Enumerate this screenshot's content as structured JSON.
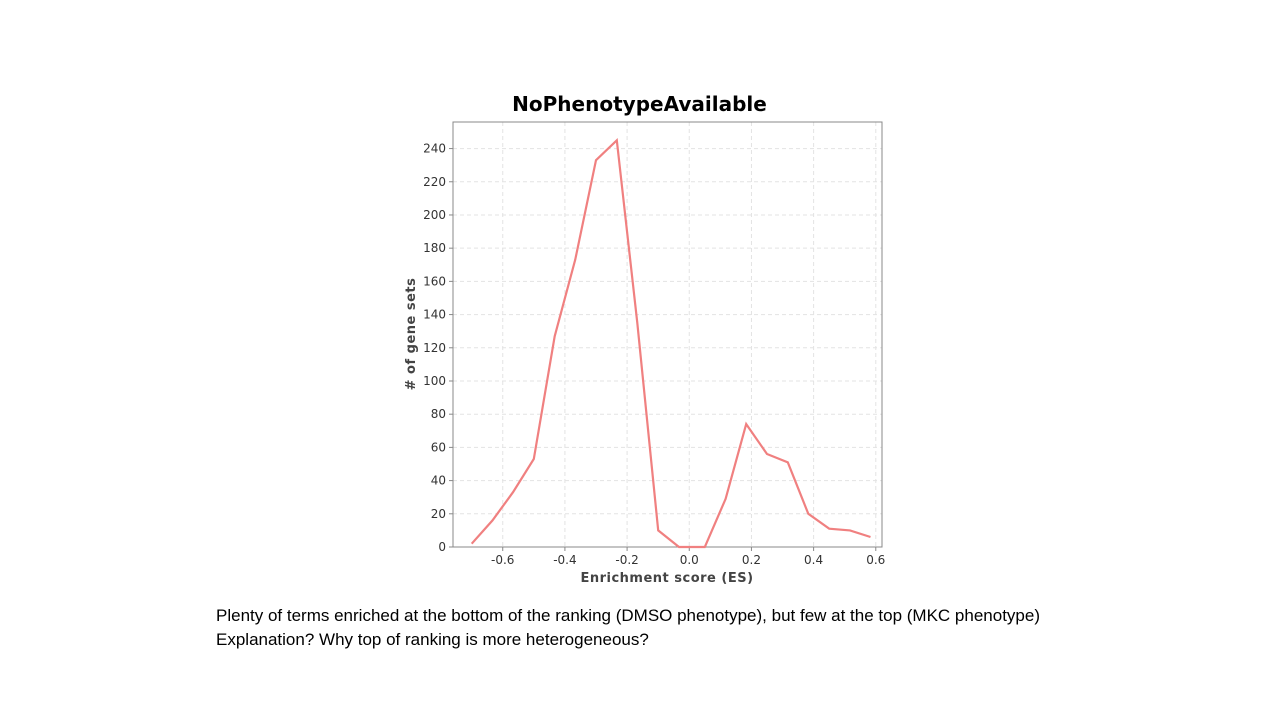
{
  "chart_data": {
    "type": "line",
    "title": "NoPhenotypeAvailable",
    "xlabel": "Enrichment score (ES)",
    "ylabel": "# of gene sets",
    "xlim": [
      -0.76,
      0.62
    ],
    "ylim": [
      0,
      256
    ],
    "x_ticks": [
      -0.6,
      -0.4,
      -0.2,
      0.0,
      0.2,
      0.4,
      0.6
    ],
    "x_tick_labels": [
      "-0.6",
      "-0.4",
      "-0.2",
      "0.0",
      "0.2",
      "0.4",
      "0.6"
    ],
    "y_ticks": [
      0,
      20,
      40,
      60,
      80,
      100,
      120,
      140,
      160,
      180,
      200,
      220,
      240
    ],
    "y_tick_labels": [
      "0",
      "20",
      "40",
      "60",
      "80",
      "100",
      "120",
      "140",
      "160",
      "180",
      "200",
      "220",
      "240"
    ],
    "grid": true,
    "series": [
      {
        "color": "#f08080",
        "x": [
          -0.7,
          -0.633,
          -0.567,
          -0.5,
          -0.433,
          -0.367,
          -0.3,
          -0.233,
          -0.167,
          -0.1,
          -0.033,
          0.05,
          0.117,
          0.183,
          0.25,
          0.317,
          0.383,
          0.45,
          0.517,
          0.583
        ],
        "y": [
          2,
          16,
          33,
          53,
          127,
          173,
          233,
          245,
          135,
          10,
          0,
          0,
          29,
          74,
          56,
          51,
          20,
          11,
          10,
          6
        ]
      }
    ]
  },
  "caption": {
    "line1": "Plenty of terms enriched at the bottom of the ranking (DMSO phenotype), but few at the top (MKC phenotype)",
    "line2": "Explanation? Why top of ranking is more heterogeneous?"
  }
}
